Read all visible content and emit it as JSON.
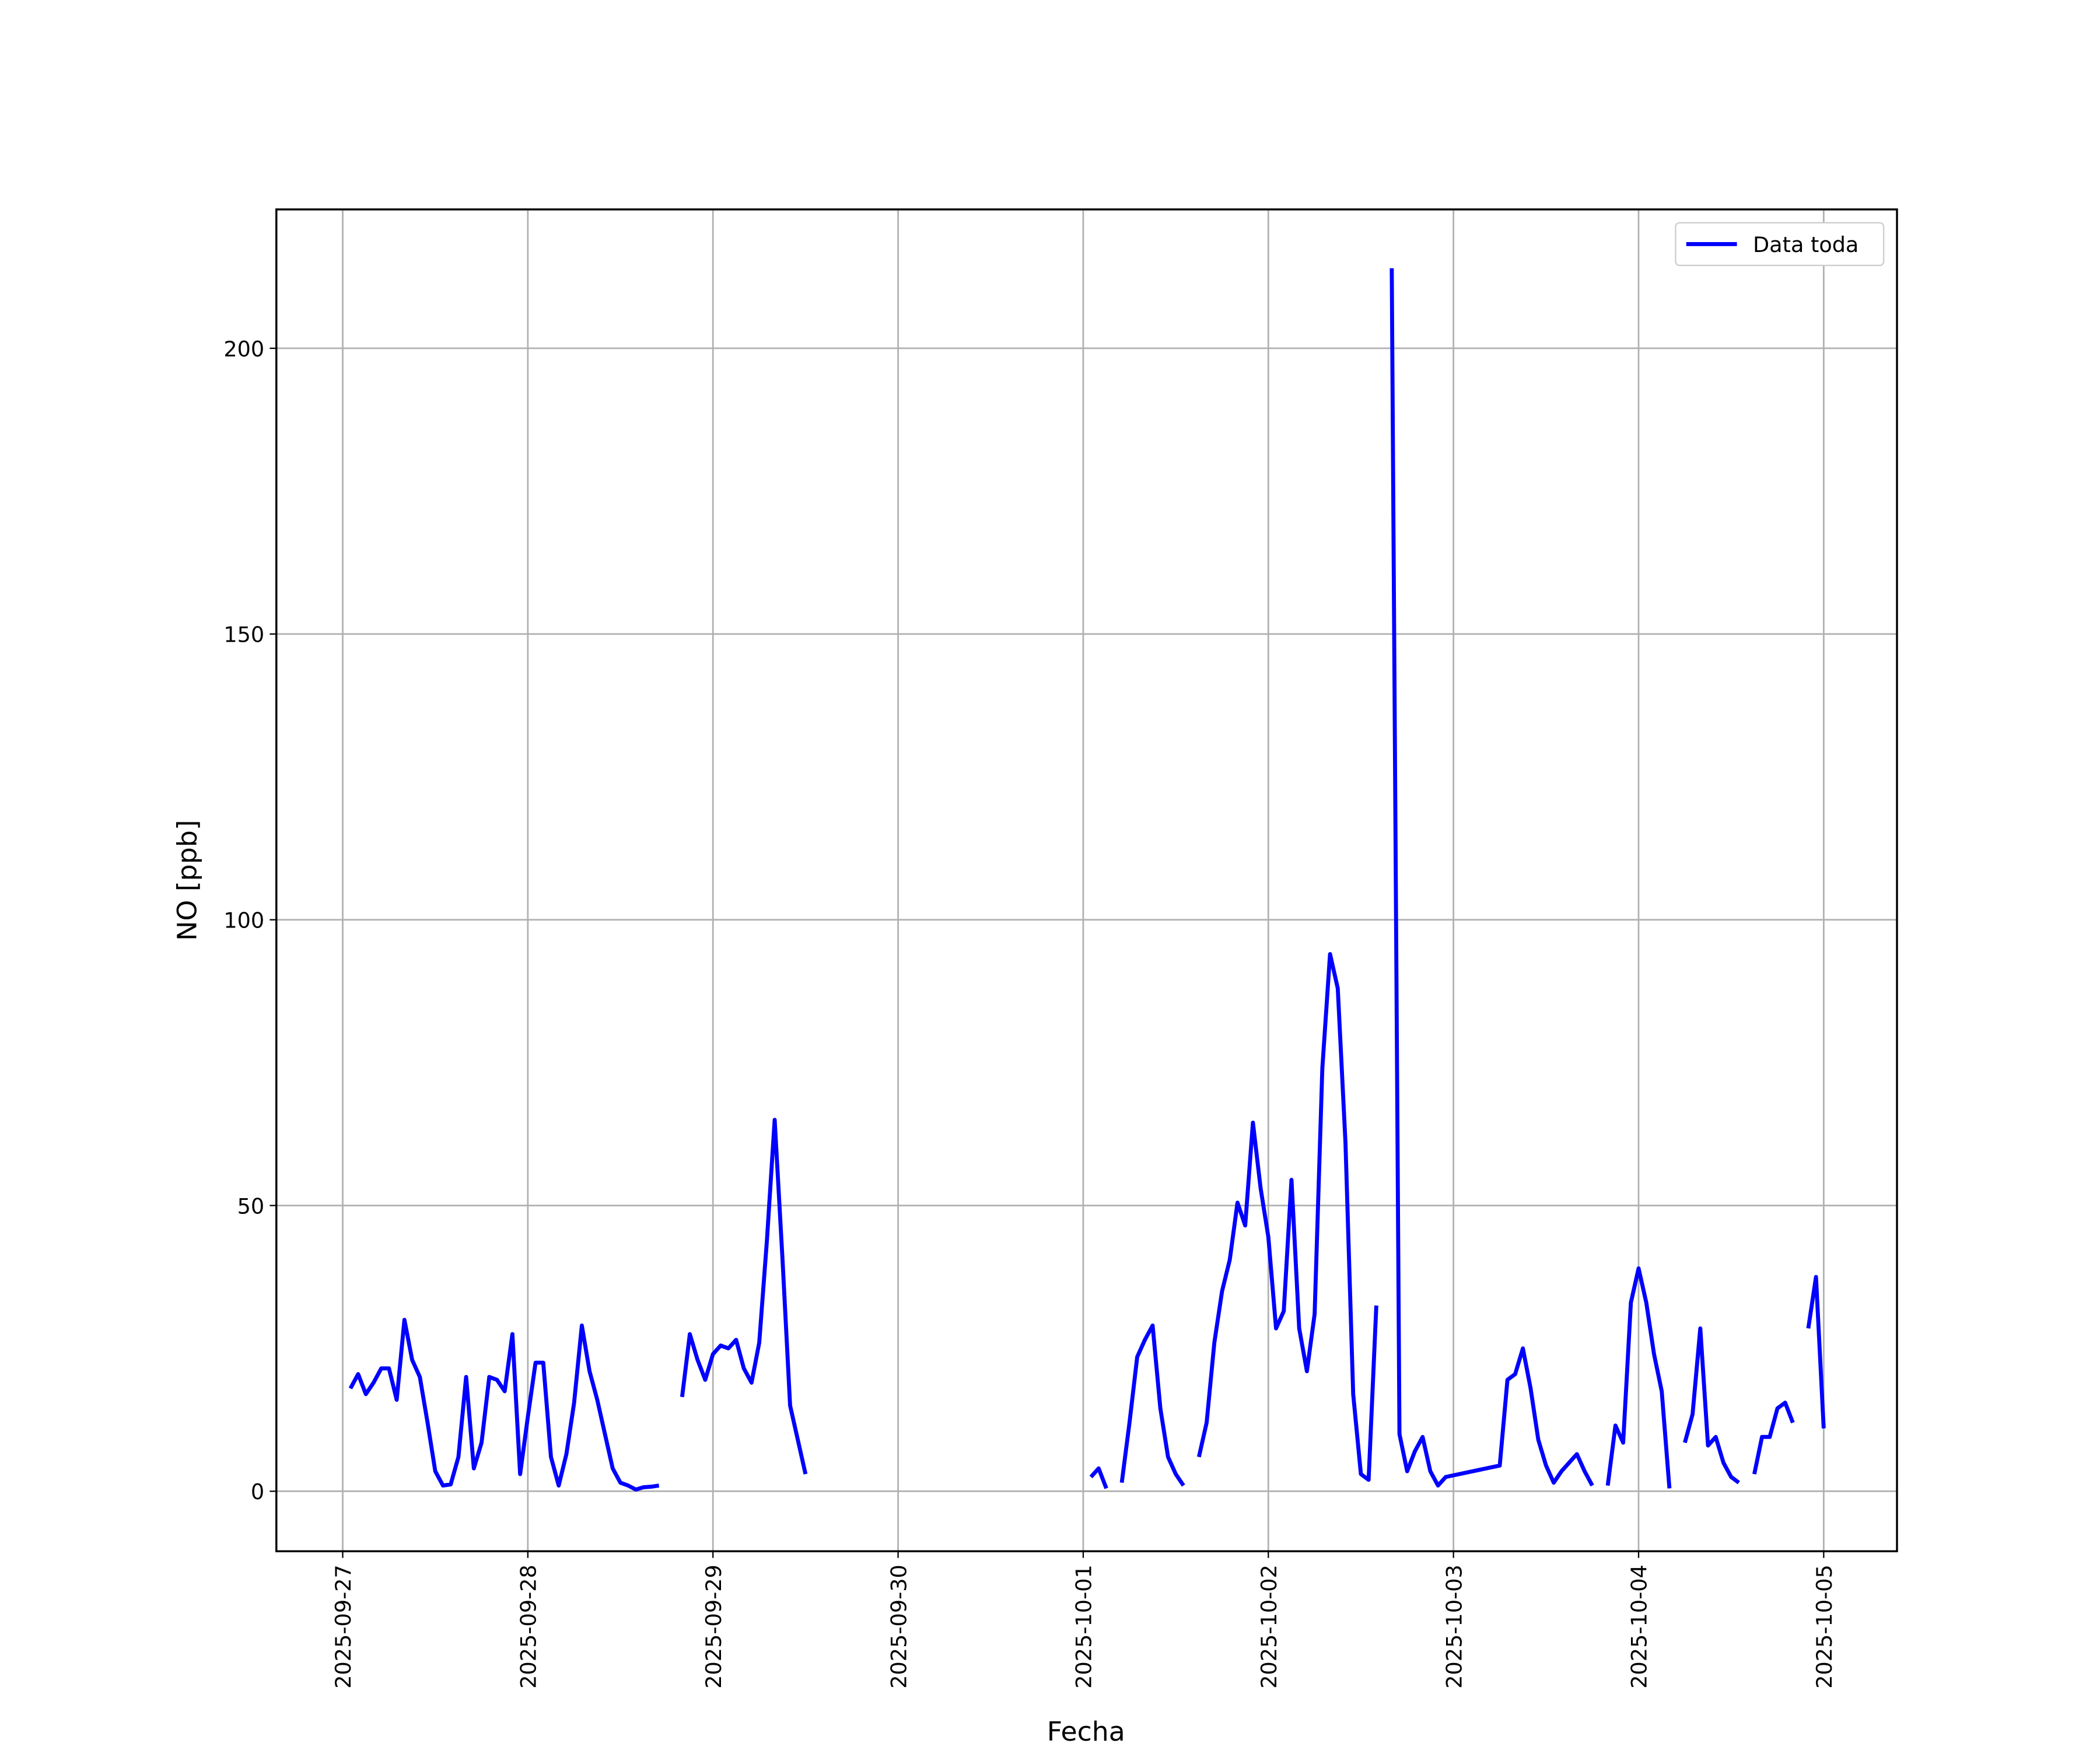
{
  "chart_data": {
    "type": "line",
    "x_label": "Fecha",
    "y_label": "NO [ppb]",
    "x": [
      "2025-09-27 01:00",
      "2025-09-27 02:00",
      "2025-09-27 03:00",
      "2025-09-27 04:00",
      "2025-09-27 05:00",
      "2025-09-27 06:00",
      "2025-09-27 07:00",
      "2025-09-27 08:00",
      "2025-09-27 09:00",
      "2025-09-27 10:00",
      "2025-09-27 11:00",
      "2025-09-27 12:00",
      "2025-09-27 13:00",
      "2025-09-27 14:00",
      "2025-09-27 15:00",
      "2025-09-27 16:00",
      "2025-09-27 17:00",
      "2025-09-27 18:00",
      "2025-09-27 19:00",
      "2025-09-27 20:00",
      "2025-09-27 21:00",
      "2025-09-27 22:00",
      "2025-09-27 23:00",
      "2025-09-28 00:00",
      "2025-09-28 01:00",
      "2025-09-28 02:00",
      "2025-09-28 03:00",
      "2025-09-28 04:00",
      "2025-09-28 05:00",
      "2025-09-28 06:00",
      "2025-09-28 07:00",
      "2025-09-28 08:00",
      "2025-09-28 09:00",
      "2025-09-28 10:00",
      "2025-09-28 11:00",
      "2025-09-28 12:00",
      "2025-09-28 13:00",
      "2025-09-28 14:00",
      "2025-09-28 15:00",
      "2025-09-28 16:00",
      "2025-09-28 17:00",
      "2025-09-28 18:00",
      "2025-09-28 20:00",
      "2025-09-28 21:00",
      "2025-09-28 22:00",
      "2025-09-28 23:00",
      "2025-09-29 00:00",
      "2025-09-29 01:00",
      "2025-09-29 02:00",
      "2025-09-29 03:00",
      "2025-09-29 04:00",
      "2025-09-29 05:00",
      "2025-09-29 06:00",
      "2025-09-29 07:00",
      "2025-09-29 08:00",
      "2025-09-29 09:00",
      "2025-09-29 10:00",
      "2025-09-29 11:00",
      "2025-09-29 12:00",
      "2025-09-29 13:00",
      "2025-10-01 01:00",
      "2025-10-01 02:00",
      "2025-10-01 03:00",
      "2025-10-01 04:00",
      "2025-10-01 05:00",
      "2025-10-01 06:00",
      "2025-10-01 07:00",
      "2025-10-01 08:00",
      "2025-10-01 09:00",
      "2025-10-01 10:00",
      "2025-10-01 11:00",
      "2025-10-01 12:00",
      "2025-10-01 13:00",
      "2025-10-01 14:00",
      "2025-10-01 15:00",
      "2025-10-01 16:00",
      "2025-10-01 17:00",
      "2025-10-01 18:00",
      "2025-10-01 19:00",
      "2025-10-01 20:00",
      "2025-10-01 21:00",
      "2025-10-01 22:00",
      "2025-10-01 23:00",
      "2025-10-02 00:00",
      "2025-10-02 01:00",
      "2025-10-02 02:00",
      "2025-10-02 03:00",
      "2025-10-02 04:00",
      "2025-10-02 05:00",
      "2025-10-02 06:00",
      "2025-10-02 07:00",
      "2025-10-02 08:00",
      "2025-10-02 09:00",
      "2025-10-02 10:00",
      "2025-10-02 11:00",
      "2025-10-02 12:00",
      "2025-10-02 13:00",
      "2025-10-02 14:00",
      "2025-10-02 15:00",
      "2025-10-02 16:00",
      "2025-10-02 17:00",
      "2025-10-02 18:00",
      "2025-10-02 19:00",
      "2025-10-02 20:00",
      "2025-10-02 21:00",
      "2025-10-02 22:00",
      "2025-10-02 23:00",
      "2025-10-03 06:00",
      "2025-10-03 07:00",
      "2025-10-03 08:00",
      "2025-10-03 09:00",
      "2025-10-03 10:00",
      "2025-10-03 11:00",
      "2025-10-03 12:00",
      "2025-10-03 13:00",
      "2025-10-03 14:00",
      "2025-10-03 15:00",
      "2025-10-03 16:00",
      "2025-10-03 17:00",
      "2025-10-03 18:00",
      "2025-10-03 19:00",
      "2025-10-03 20:00",
      "2025-10-03 21:00",
      "2025-10-03 22:00",
      "2025-10-03 23:00",
      "2025-10-04 00:00",
      "2025-10-04 01:00",
      "2025-10-04 02:00",
      "2025-10-04 03:00",
      "2025-10-04 04:00",
      "2025-10-04 05:00",
      "2025-10-04 06:00",
      "2025-10-04 07:00",
      "2025-10-04 08:00",
      "2025-10-04 09:00",
      "2025-10-04 10:00",
      "2025-10-04 11:00",
      "2025-10-04 12:00",
      "2025-10-04 13:00",
      "2025-10-04 14:00",
      "2025-10-04 15:00",
      "2025-10-04 16:00",
      "2025-10-04 17:00",
      "2025-10-04 18:00",
      "2025-10-04 19:00",
      "2025-10-04 20:00",
      "2025-10-04 21:00",
      "2025-10-04 22:00",
      "2025-10-04 23:00",
      "2025-10-05 00:00"
    ],
    "series": [
      {
        "name": "Data toda",
        "color": "#0000ff",
        "values": [
          18,
          20.5,
          17,
          19,
          21.5,
          21.5,
          16,
          30,
          23,
          20,
          12,
          3.5,
          1,
          1.2,
          6,
          20,
          4,
          8.5,
          20,
          19.5,
          17.5,
          27.5,
          3,
          13,
          22.5,
          22.5,
          6,
          1,
          6.5,
          15.5,
          29,
          21,
          16,
          10,
          4,
          1.5,
          1,
          0.3,
          0.7,
          0.8,
          1,
          null,
          16.5,
          27.5,
          23,
          19.5,
          24,
          25.5,
          25,
          26.5,
          21.5,
          19,
          26,
          44,
          65,
          41,
          15,
          9,
          3,
          null,
          2.5,
          4,
          0.5,
          null,
          1.5,
          12,
          23.5,
          26.5,
          29,
          14.5,
          6,
          3,
          1,
          null,
          6,
          12,
          26,
          35,
          40.5,
          50.5,
          46.5,
          64.5,
          53,
          44.5,
          28.5,
          31.5,
          54.5,
          28.5,
          21,
          31,
          74,
          94,
          88,
          61,
          17,
          3,
          2,
          32.5,
          null,
          214,
          10,
          3.5,
          7,
          9.5,
          3.5,
          1,
          2.5,
          4.5,
          19.5,
          20.5,
          25,
          18,
          9,
          4.5,
          1.5,
          3.5,
          5,
          6.5,
          3.5,
          1,
          null,
          1,
          11.5,
          8.5,
          33,
          39,
          33,
          24,
          17.5,
          0.5,
          null,
          8.5,
          13.5,
          28.5,
          8,
          9.5,
          5,
          2.5,
          1.5,
          null,
          3,
          9.5,
          9.5,
          14.5,
          15.5,
          12,
          null,
          28.5,
          37.5,
          11
        ]
      }
    ],
    "xlim": [
      "2025-09-26 15:24",
      "2025-10-05 09:30"
    ],
    "xticks": [
      "2025-09-27",
      "2025-09-28",
      "2025-09-29",
      "2025-09-30",
      "2025-10-01",
      "2025-10-02",
      "2025-10-03",
      "2025-10-04",
      "2025-10-05"
    ],
    "ylim": [
      -10.5,
      224.3
    ],
    "yticks": [
      0,
      50,
      100,
      150,
      200
    ],
    "grid": true,
    "legend": "upper right"
  }
}
